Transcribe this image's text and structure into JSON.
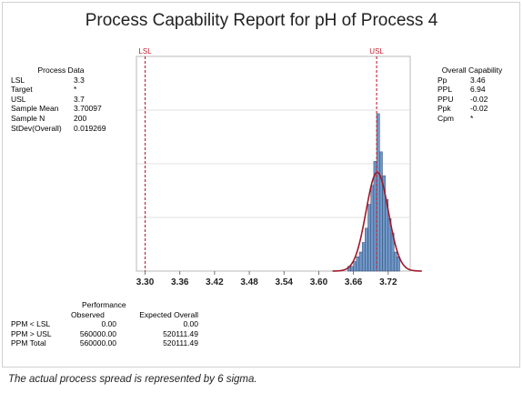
{
  "title": "Process Capability Report for pH of Process 4",
  "note": "The actual process spread is represented by 6 sigma.",
  "process_data": {
    "header": "Process Data",
    "rows": [
      {
        "label": "LSL",
        "value": "3.3"
      },
      {
        "label": "Target",
        "value": "*"
      },
      {
        "label": "USL",
        "value": "3.7"
      },
      {
        "label": "Sample Mean",
        "value": "3.70097"
      },
      {
        "label": "Sample N",
        "value": "200"
      },
      {
        "label": "StDev(Overall)",
        "value": "0.019269"
      }
    ]
  },
  "overall_capability": {
    "header": "Overall Capability",
    "rows": [
      {
        "label": "Pp",
        "value": "3.46"
      },
      {
        "label": "PPL",
        "value": "6.94"
      },
      {
        "label": "PPU",
        "value": "-0.02"
      },
      {
        "label": "Ppk",
        "value": "-0.02"
      },
      {
        "label": "Cpm",
        "value": "*"
      }
    ]
  },
  "performance": {
    "header": "Performance",
    "col_observed": "Observed",
    "col_expected": "Expected Overall",
    "rows": [
      {
        "label": "PPM < LSL",
        "observed": "0.00",
        "expected": "0.00"
      },
      {
        "label": "PPM > USL",
        "observed": "560000.00",
        "expected": "520111.49"
      },
      {
        "label": "PPM Total",
        "observed": "560000.00",
        "expected": "520111.49"
      }
    ]
  },
  "chart_data": {
    "type": "bar",
    "title": "Process Capability Report for pH of Process 4",
    "x_ticks": [
      "3.30",
      "3.36",
      "3.42",
      "3.48",
      "3.54",
      "3.60",
      "3.66",
      "3.72"
    ],
    "xlim": [
      3.285,
      3.758
    ],
    "ylim": [
      0,
      45
    ],
    "spec_lines": [
      {
        "label": "LSL",
        "value": 3.3
      },
      {
        "label": "USL",
        "value": 3.7
      }
    ],
    "histogram": {
      "bin_width": 0.005,
      "bin_starts": [
        3.65,
        3.655,
        3.66,
        3.665,
        3.67,
        3.675,
        3.68,
        3.685,
        3.69,
        3.695,
        3.7,
        3.705,
        3.71,
        3.715,
        3.72,
        3.725,
        3.73,
        3.735
      ],
      "counts": [
        1,
        1,
        2,
        3,
        4,
        6,
        9,
        14,
        18,
        23,
        33,
        25,
        20,
        15,
        11,
        8,
        4,
        3
      ]
    },
    "curve": {
      "mean": 3.70097,
      "stdev": 0.019269
    },
    "colors": {
      "bar_fill": "#7097c8",
      "bar_edge": "#2e4a72",
      "curve": "#a0182a",
      "spec": "#c02030",
      "grid": "#d9d9d9",
      "title": "#222222"
    }
  }
}
